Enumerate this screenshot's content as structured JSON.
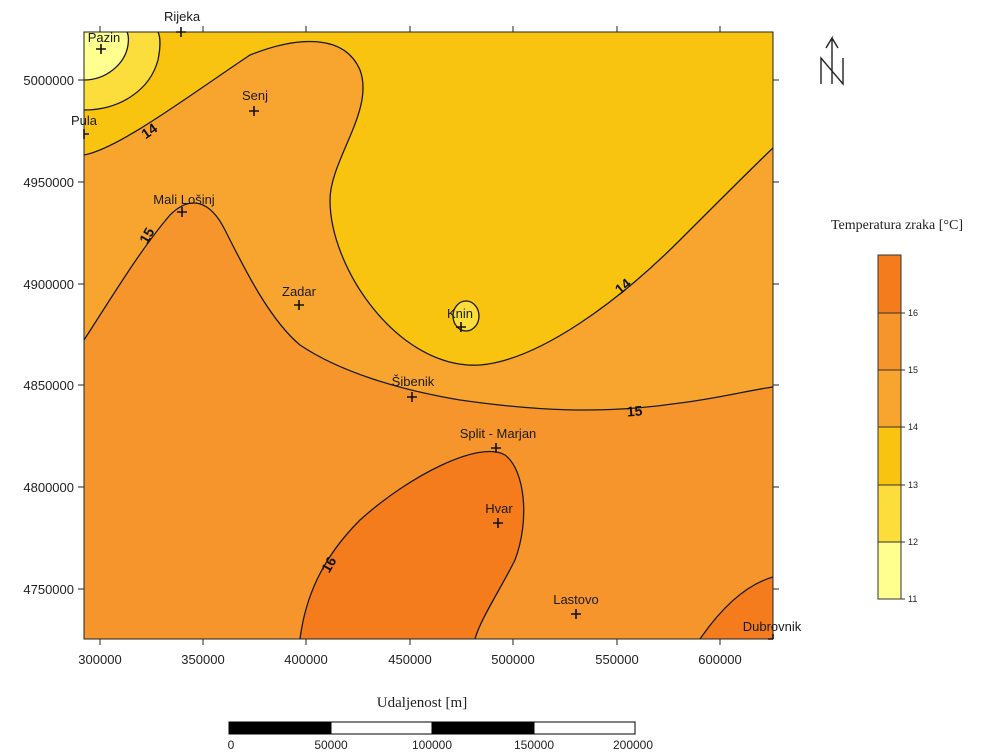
{
  "map": {
    "x_axis_title": "Udaljenost [m]",
    "x_ticks": [
      "300000",
      "350000",
      "400000",
      "450000",
      "500000",
      "550000",
      "600000"
    ],
    "y_ticks": [
      "5000000",
      "4950000",
      "4900000",
      "4850000",
      "4800000",
      "4750000"
    ],
    "contour_labels": [
      {
        "id": "14-west",
        "text": "14"
      },
      {
        "id": "15-west",
        "text": "15"
      },
      {
        "id": "14-east",
        "text": "14"
      },
      {
        "id": "15-east",
        "text": "15"
      },
      {
        "id": "16-south",
        "text": "16"
      }
    ],
    "places": [
      {
        "name": "Rijeka"
      },
      {
        "name": "Pazin"
      },
      {
        "name": "Pula"
      },
      {
        "name": "Senj"
      },
      {
        "name": "Mali Lošinj"
      },
      {
        "name": "Zadar"
      },
      {
        "name": "Knin"
      },
      {
        "name": "Šibenik"
      },
      {
        "name": "Split - Marjan"
      },
      {
        "name": "Hvar"
      },
      {
        "name": "Lastovo"
      },
      {
        "name": "Dubrovnik"
      }
    ],
    "north_arrow": "north-arrow-icon"
  },
  "legend": {
    "title": "Temperatura zraka [°C]",
    "ticks": [
      "16",
      "15",
      "14",
      "13",
      "12",
      "11"
    ],
    "colors": {
      "c16plus": "#f47c1c",
      "c15_16": "#f6952c",
      "c14_15": "#f8a52f",
      "c13_14": "#f9c410",
      "c12_13": "#fbde3c",
      "c11_12": "#feff8e"
    }
  },
  "scale_bar": {
    "labels": [
      "0",
      "50000",
      "100000",
      "150000",
      "200000"
    ]
  }
}
